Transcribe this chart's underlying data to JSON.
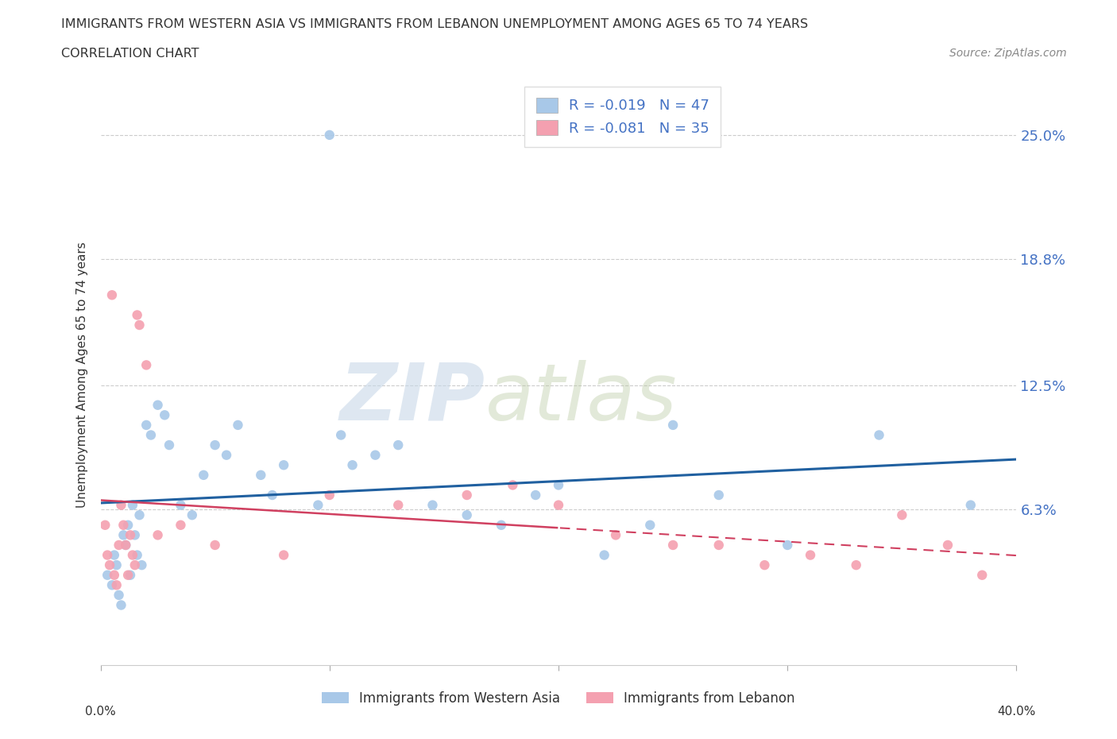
{
  "title_line1": "IMMIGRANTS FROM WESTERN ASIA VS IMMIGRANTS FROM LEBANON UNEMPLOYMENT AMONG AGES 65 TO 74 YEARS",
  "title_line2": "CORRELATION CHART",
  "source": "Source: ZipAtlas.com",
  "ylabel": "Unemployment Among Ages 65 to 74 years",
  "ytick_labels": [
    "6.3%",
    "12.5%",
    "18.8%",
    "25.0%"
  ],
  "ytick_values": [
    6.3,
    12.5,
    18.8,
    25.0
  ],
  "xlim": [
    0.0,
    40.0
  ],
  "ylim": [
    -1.5,
    27.5
  ],
  "color_blue": "#a8c8e8",
  "color_pink": "#f4a0b0",
  "trendline_blue": "#2060a0",
  "trendline_pink": "#d04060",
  "watermark_zip": "ZIP",
  "watermark_atlas": "atlas",
  "western_asia_x": [
    0.3,
    0.5,
    0.6,
    0.7,
    0.8,
    0.9,
    1.0,
    1.1,
    1.2,
    1.3,
    1.4,
    1.5,
    1.6,
    1.7,
    1.8,
    2.0,
    2.2,
    2.5,
    2.8,
    3.0,
    3.5,
    4.0,
    4.5,
    5.0,
    5.5,
    6.0,
    7.0,
    7.5,
    8.0,
    9.5,
    10.5,
    11.0,
    12.0,
    13.0,
    14.5,
    16.0,
    17.5,
    10.0,
    19.0,
    20.0,
    22.0,
    24.0,
    25.0,
    27.0,
    30.0,
    34.0,
    38.0
  ],
  "western_asia_y": [
    3.0,
    2.5,
    4.0,
    3.5,
    2.0,
    1.5,
    5.0,
    4.5,
    5.5,
    3.0,
    6.5,
    5.0,
    4.0,
    6.0,
    3.5,
    10.5,
    10.0,
    11.5,
    11.0,
    9.5,
    6.5,
    6.0,
    8.0,
    9.5,
    9.0,
    10.5,
    8.0,
    7.0,
    8.5,
    6.5,
    10.0,
    8.5,
    9.0,
    9.5,
    6.5,
    6.0,
    5.5,
    25.0,
    7.0,
    7.5,
    4.0,
    5.5,
    10.5,
    7.0,
    4.5,
    10.0,
    6.5
  ],
  "lebanon_x": [
    0.2,
    0.3,
    0.4,
    0.5,
    0.6,
    0.7,
    0.8,
    0.9,
    1.0,
    1.1,
    1.2,
    1.3,
    1.4,
    1.5,
    1.6,
    1.7,
    2.0,
    2.5,
    3.5,
    5.0,
    8.0,
    10.0,
    13.0,
    16.0,
    18.0,
    20.0,
    22.5,
    25.0,
    27.0,
    29.0,
    31.0,
    33.0,
    35.0,
    37.0,
    38.5
  ],
  "lebanon_y": [
    5.5,
    4.0,
    3.5,
    17.0,
    3.0,
    2.5,
    4.5,
    6.5,
    5.5,
    4.5,
    3.0,
    5.0,
    4.0,
    3.5,
    16.0,
    15.5,
    13.5,
    5.0,
    5.5,
    4.5,
    4.0,
    7.0,
    6.5,
    7.0,
    7.5,
    6.5,
    5.0,
    4.5,
    4.5,
    3.5,
    4.0,
    3.5,
    6.0,
    4.5,
    3.0
  ]
}
